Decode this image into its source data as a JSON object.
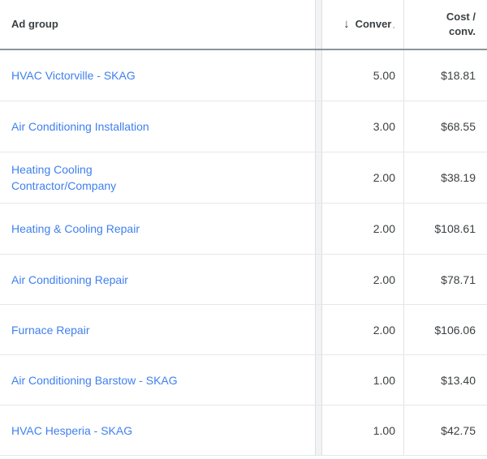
{
  "table": {
    "header": {
      "ad_group": "Ad group",
      "conversions": {
        "sort_icon": "↓",
        "label": "Conver",
        "truncation_dot": "."
      },
      "cost_per_conv_line1": "Cost /",
      "cost_per_conv_line2": "conv."
    },
    "rows": [
      {
        "name_lines": [
          "HVAC Victorville - SKAG"
        ],
        "conversions": "5.00",
        "cost_per_conv": "$18.81"
      },
      {
        "name_lines": [
          "Air Conditioning Installation"
        ],
        "conversions": "3.00",
        "cost_per_conv": "$68.55"
      },
      {
        "name_lines": [
          "Heating Cooling",
          "Contractor/Company"
        ],
        "conversions": "2.00",
        "cost_per_conv": "$38.19"
      },
      {
        "name_lines": [
          "Heating & Cooling Repair"
        ],
        "conversions": "2.00",
        "cost_per_conv": "$108.61"
      },
      {
        "name_lines": [
          "Air Conditioning Repair"
        ],
        "conversions": "2.00",
        "cost_per_conv": "$78.71"
      },
      {
        "name_lines": [
          "Furnace Repair"
        ],
        "conversions": "2.00",
        "cost_per_conv": "$106.06"
      },
      {
        "name_lines": [
          "Air Conditioning Barstow - SKAG"
        ],
        "conversions": "1.00",
        "cost_per_conv": "$13.40"
      },
      {
        "name_lines": [
          "HVAC Hesperia - SKAG"
        ],
        "conversions": "1.00",
        "cost_per_conv": "$42.75"
      }
    ]
  },
  "colors": {
    "link_blue": "#3f80ee",
    "header_text": "#3c4043",
    "cell_text": "#3c4043",
    "header_underline": "#8a949b",
    "row_divider": "#e7e7e7",
    "frozen_band_fill": "#f2f3f4",
    "frozen_band_edge": "#dcdee0",
    "column_divider": "#e4e4e4"
  }
}
